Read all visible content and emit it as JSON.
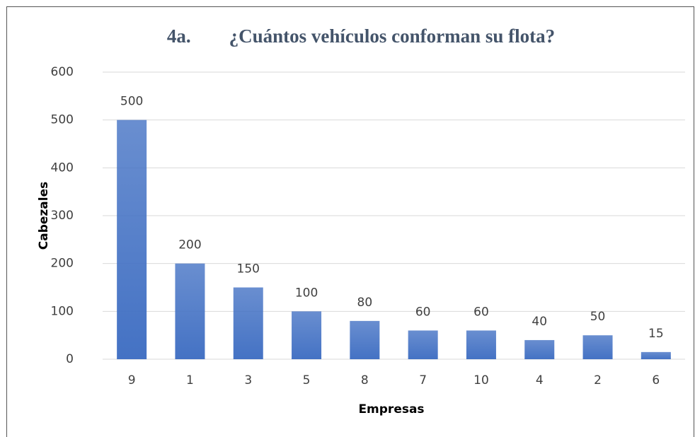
{
  "chart_data": {
    "type": "bar",
    "title": "4a.        ¿Cuántos vehículos conforman su flota?",
    "categories": [
      "9",
      "1",
      "3",
      "5",
      "8",
      "7",
      "10",
      "4",
      "2",
      "6"
    ],
    "values": [
      500,
      200,
      150,
      100,
      80,
      60,
      60,
      40,
      50,
      15
    ],
    "color": "#4472c4",
    "ylim": [
      0,
      600
    ],
    "yticks": [
      0,
      100,
      200,
      300,
      400,
      500,
      600
    ],
    "grid": true,
    "xlabel": "Empresas",
    "ylabel": "Cabezales"
  }
}
